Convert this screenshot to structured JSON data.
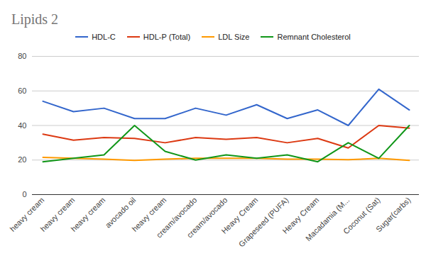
{
  "chart_data": {
    "type": "line",
    "title": "Lipids 2",
    "categories": [
      "heavy cream",
      "heavy cream",
      "heavy cream",
      "avocado oil",
      "heavy cream",
      "cream/avocado",
      "cream/avocado",
      "Heavy Cream",
      "Grapeseed (PUFA)",
      "Heavy Cream",
      "Macadamia (M...",
      "Coconut (Sat)",
      "Sugar(carbs)"
    ],
    "series": [
      {
        "name": "HDL-C",
        "color": "#3366cc",
        "values": [
          54,
          48,
          50,
          44,
          44,
          50,
          46,
          52,
          44,
          49,
          40,
          61,
          49
        ]
      },
      {
        "name": "HDL-P (Total)",
        "color": "#dc3912",
        "values": [
          35,
          31.5,
          33,
          32.5,
          30,
          33,
          32,
          33,
          30,
          32.5,
          27,
          40,
          38.5
        ]
      },
      {
        "name": "LDL Size",
        "color": "#ff9900",
        "values": [
          21.5,
          21,
          20.5,
          19.8,
          20.5,
          21,
          21,
          21,
          20.5,
          20.5,
          20.2,
          21,
          19.8
        ]
      },
      {
        "name": "Remnant Cholesterol",
        "color": "#109618",
        "values": [
          19,
          21,
          23,
          40,
          25,
          20,
          23,
          21,
          23,
          19,
          30,
          21,
          40
        ]
      }
    ],
    "ylim": [
      0,
      80
    ],
    "yticks": [
      0,
      20,
      40,
      60,
      80
    ],
    "grid": true,
    "legend": "top"
  }
}
